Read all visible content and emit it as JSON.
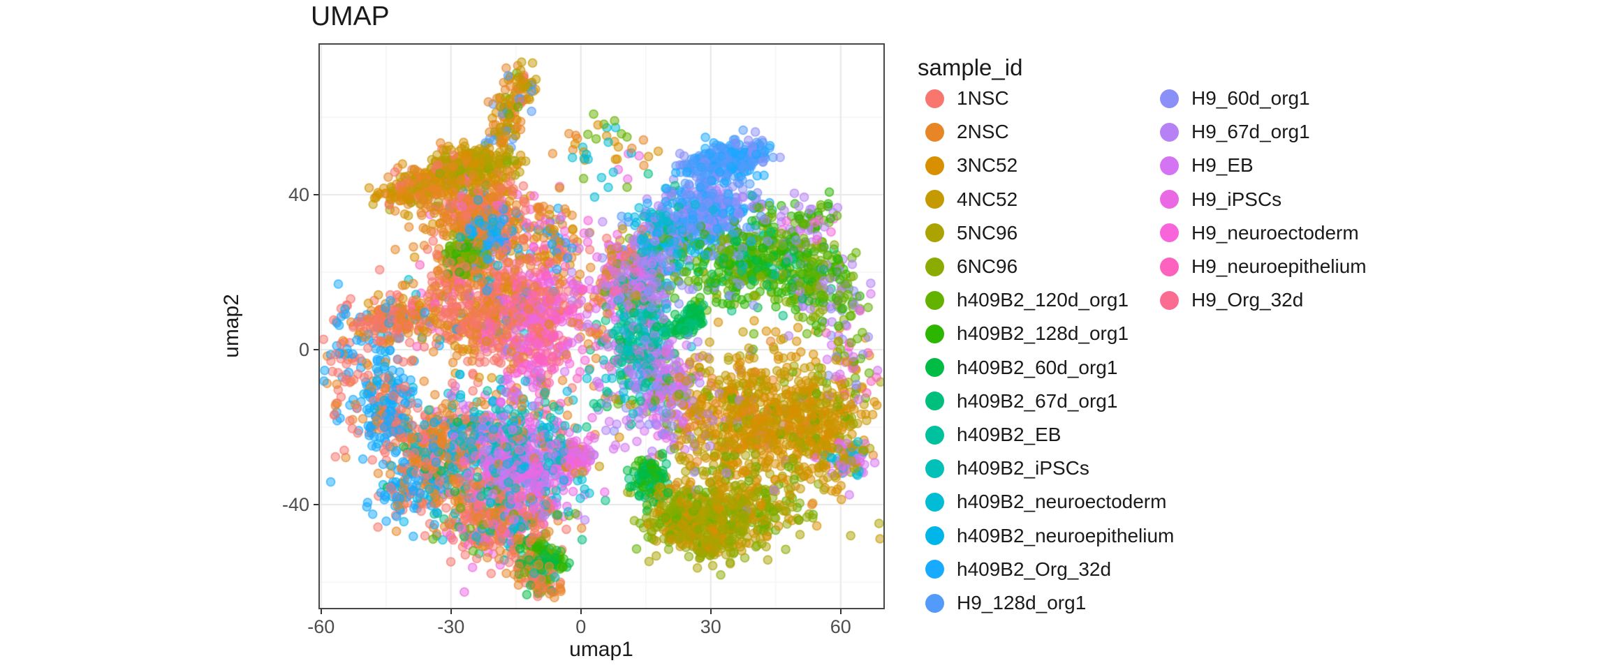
{
  "title": "UMAP",
  "style": {
    "background": "#FFFFFF",
    "panel_border": "#474747",
    "grid_major": "#E8E8E8",
    "grid_minor": "#F4F4F4",
    "tick_color": "#333333",
    "tick_text_color": "#4D4D4D",
    "text_color": "#1A1A1A"
  },
  "chart_data": {
    "type": "scatter",
    "title": "UMAP",
    "xlabel": "umap1",
    "ylabel": "umap2",
    "xlim": [
      -60.6,
      70.2
    ],
    "ylim": [
      -67.0,
      79.1
    ],
    "x_ticks": [
      -60,
      -30,
      0,
      30,
      60
    ],
    "y_ticks": [
      -40,
      0,
      40
    ],
    "x_minor_ticks": [
      -45,
      -15,
      15,
      45
    ],
    "y_minor_ticks": [
      -60,
      -20,
      20,
      60
    ],
    "grid": true,
    "legend_position": "right",
    "legend_title": "sample_id",
    "legend_columns": [
      16,
      7
    ],
    "point_style": {
      "radius_px": 6.0,
      "fill_alpha": 0.5,
      "stroke_alpha": 0.75,
      "stroke_width": 1.5
    },
    "series": [
      {
        "label": "1NSC",
        "color": "#F8766D"
      },
      {
        "label": "2NSC",
        "color": "#E88526"
      },
      {
        "label": "3NC52",
        "color": "#D89000"
      },
      {
        "label": "4NC52",
        "color": "#C49A00"
      },
      {
        "label": "5NC96",
        "color": "#ABA300"
      },
      {
        "label": "6NC96",
        "color": "#8CAB00"
      },
      {
        "label": "h409B2_120d_org1",
        "color": "#64B200"
      },
      {
        "label": "h409B2_128d_org1",
        "color": "#2CB600"
      },
      {
        "label": "h409B2_60d_org1",
        "color": "#00BB44"
      },
      {
        "label": "h409B2_67d_org1",
        "color": "#00BF7D"
      },
      {
        "label": "h409B2_EB",
        "color": "#00C19E"
      },
      {
        "label": "h409B2_iPSCs",
        "color": "#00C0B8"
      },
      {
        "label": "h409B2_neuroectoderm",
        "color": "#00BCD4"
      },
      {
        "label": "h409B2_neuroepithelium",
        "color": "#00B5EA"
      },
      {
        "label": "h409B2_Org_32d",
        "color": "#17AAFF"
      },
      {
        "label": "H9_128d_org1",
        "color": "#529BFB"
      },
      {
        "label": "H9_60d_org1",
        "color": "#8B8FF8"
      },
      {
        "label": "H9_67d_org1",
        "color": "#B581F5"
      },
      {
        "label": "H9_EB",
        "color": "#D574F2"
      },
      {
        "label": "H9_iPSCs",
        "color": "#EB68E5"
      },
      {
        "label": "H9_neuroectoderm",
        "color": "#F864D9"
      },
      {
        "label": "H9_neuroepithelium",
        "color": "#FC62BE"
      },
      {
        "label": "H9_Org_32d",
        "color": "#FB6C92"
      }
    ],
    "clusters": [
      {
        "n": 250,
        "x": -44,
        "y": 38,
        "x2": -27,
        "y2": 49,
        "sx": 3,
        "sy": 2.6,
        "mix": [
          [
            2,
            33
          ],
          [
            1,
            27
          ],
          [
            3,
            20
          ],
          [
            0,
            10
          ],
          [
            4,
            10
          ]
        ]
      },
      {
        "n": 210,
        "x": -30,
        "y": 45,
        "x2": -18,
        "y2": 49,
        "sx": 3.5,
        "sy": 2.6,
        "mix": [
          [
            3,
            34
          ],
          [
            4,
            30
          ],
          [
            2,
            21
          ],
          [
            5,
            15
          ]
        ]
      },
      {
        "n": 320,
        "x": -24,
        "y": 36,
        "sx": 6,
        "sy": 4.5,
        "mix": [
          [
            1,
            40
          ],
          [
            0,
            28
          ],
          [
            2,
            20
          ],
          [
            20,
            6
          ],
          [
            14,
            6
          ]
        ]
      },
      {
        "n": 130,
        "x": -19,
        "y": 53,
        "x2": -13,
        "y2": 71,
        "sx": 1.9,
        "sy": 2.2,
        "mix": [
          [
            1,
            28
          ],
          [
            2,
            24
          ],
          [
            3,
            20
          ],
          [
            15,
            10
          ],
          [
            6,
            12
          ],
          [
            0,
            6
          ]
        ]
      },
      {
        "n": 120,
        "x": -26,
        "y": 25,
        "sx": 2.6,
        "sy": 2.6,
        "mix": [
          [
            6,
            50
          ],
          [
            7,
            30
          ],
          [
            5,
            20
          ]
        ]
      },
      {
        "n": 120,
        "x": -22,
        "y": 30,
        "sx": 2.6,
        "sy": 3,
        "mix": [
          [
            14,
            62
          ],
          [
            13,
            20
          ],
          [
            15,
            18
          ]
        ]
      },
      {
        "n": 640,
        "x": -22,
        "y": 12,
        "sx": 8.5,
        "sy": 8.5,
        "mix": [
          [
            0,
            42
          ],
          [
            1,
            32
          ],
          [
            2,
            8
          ],
          [
            20,
            6
          ],
          [
            21,
            5
          ],
          [
            14,
            4
          ],
          [
            12,
            3
          ]
        ]
      },
      {
        "n": 330,
        "x": -9,
        "y": 6,
        "sx": 5,
        "sy": 9,
        "mix": [
          [
            20,
            28
          ],
          [
            21,
            24
          ],
          [
            19,
            15
          ],
          [
            0,
            13
          ],
          [
            1,
            11
          ],
          [
            18,
            9
          ]
        ]
      },
      {
        "n": 170,
        "x": -49,
        "y": 5,
        "x2": -38,
        "y2": 10,
        "sx": 3,
        "sy": 2.6,
        "mix": [
          [
            0,
            44
          ],
          [
            1,
            30
          ],
          [
            14,
            15
          ],
          [
            2,
            11
          ]
        ]
      },
      {
        "n": 200,
        "x": -45,
        "y": -14,
        "sx": 3.6,
        "sy": 6,
        "mix": [
          [
            14,
            54
          ],
          [
            0,
            25
          ],
          [
            1,
            11
          ],
          [
            13,
            10
          ]
        ]
      },
      {
        "n": 470,
        "x": -18,
        "y": -23,
        "sx": 8,
        "sy": 7,
        "mix": [
          [
            12,
            19
          ],
          [
            11,
            15
          ],
          [
            13,
            12
          ],
          [
            10,
            10
          ],
          [
            19,
            15
          ],
          [
            18,
            14
          ],
          [
            1,
            15
          ]
        ]
      },
      {
        "n": 300,
        "x": -14,
        "y": -32,
        "sx": 6,
        "sy": 5,
        "mix": [
          [
            19,
            29
          ],
          [
            18,
            25
          ],
          [
            20,
            15
          ],
          [
            17,
            10
          ],
          [
            12,
            11
          ],
          [
            11,
            10
          ]
        ]
      },
      {
        "n": 330,
        "x": -33,
        "y": -28,
        "sx": 6,
        "sy": 6,
        "mix": [
          [
            1,
            39
          ],
          [
            0,
            34
          ],
          [
            14,
            11
          ],
          [
            12,
            9
          ],
          [
            8,
            7
          ]
        ]
      },
      {
        "n": 380,
        "x": -19,
        "y": -45,
        "sx": 7,
        "sy": 5,
        "mix": [
          [
            1,
            30
          ],
          [
            0,
            24
          ],
          [
            12,
            12
          ],
          [
            19,
            10
          ],
          [
            20,
            9
          ],
          [
            6,
            8
          ],
          [
            9,
            7
          ]
        ]
      },
      {
        "n": 120,
        "x": -14,
        "y": -54,
        "x2": -7,
        "y2": -62,
        "sx": 2,
        "sy": 2,
        "mix": [
          [
            1,
            34
          ],
          [
            0,
            24
          ],
          [
            8,
            16
          ],
          [
            6,
            15
          ],
          [
            11,
            11
          ]
        ]
      },
      {
        "n": 90,
        "x": -40,
        "y": -36,
        "sx": 4,
        "sy": 5,
        "mix": [
          [
            14,
            58
          ],
          [
            13,
            20
          ],
          [
            0,
            22
          ]
        ]
      },
      {
        "n": 60,
        "x": -54,
        "y": -3,
        "sx": 2.6,
        "sy": 8,
        "mix": [
          [
            14,
            38
          ],
          [
            0,
            32
          ],
          [
            1,
            30
          ]
        ]
      },
      {
        "n": 70,
        "x": -12,
        "y": -50,
        "x2": -5,
        "y2": -55,
        "sx": 1.6,
        "sy": 1.6,
        "mix": [
          [
            7,
            40
          ],
          [
            8,
            30
          ],
          [
            6,
            30
          ]
        ]
      },
      {
        "n": 90,
        "x": -2,
        "y": -28,
        "sx": 2.2,
        "sy": 2.6,
        "mix": [
          [
            19,
            38
          ],
          [
            20,
            28
          ],
          [
            3,
            16
          ],
          [
            18,
            18
          ]
        ]
      },
      {
        "n": 90,
        "x": -7,
        "y": 30,
        "sx": 4,
        "sy": 6,
        "mix": [
          [
            1,
            30
          ],
          [
            20,
            20
          ],
          [
            14,
            20
          ],
          [
            2,
            30
          ]
        ]
      },
      {
        "n": 60,
        "x": 0,
        "y": 16,
        "sx": 4,
        "sy": 10,
        "mix": [
          [
            20,
            28
          ],
          [
            18,
            22
          ],
          [
            17,
            20
          ],
          [
            1,
            30
          ]
        ]
      },
      {
        "n": 45,
        "x": 6,
        "y": 52,
        "sx": 6,
        "sy": 5,
        "mix": [
          [
            2,
            25
          ],
          [
            1,
            25
          ],
          [
            12,
            15
          ],
          [
            6,
            20
          ],
          [
            19,
            15
          ]
        ]
      },
      {
        "n": 25,
        "x": -56,
        "y": -6,
        "sx": 2,
        "sy": 13,
        "mix": [
          [
            0,
            50
          ],
          [
            1,
            28
          ],
          [
            14,
            22
          ]
        ]
      },
      {
        "n": 250,
        "x": 27,
        "y": 47,
        "x2": 41,
        "y2": 51,
        "sx": 2.8,
        "sy": 2.3,
        "mix": [
          [
            15,
            58
          ],
          [
            14,
            26
          ],
          [
            16,
            16
          ]
        ]
      },
      {
        "n": 300,
        "x": 30,
        "y": 36,
        "sx": 6,
        "sy": 4.2,
        "mix": [
          [
            15,
            34
          ],
          [
            16,
            29
          ],
          [
            14,
            20
          ],
          [
            17,
            17
          ]
        ]
      },
      {
        "n": 220,
        "x": 20,
        "y": 29,
        "sx": 4.2,
        "sy": 5.2,
        "mix": [
          [
            13,
            27
          ],
          [
            12,
            22
          ],
          [
            15,
            19
          ],
          [
            9,
            15
          ],
          [
            17,
            17
          ]
        ]
      },
      {
        "n": 430,
        "x": 38,
        "y": 22,
        "sx": 9,
        "sy": 5.2,
        "mix": [
          [
            6,
            29
          ],
          [
            7,
            25
          ],
          [
            8,
            15
          ],
          [
            9,
            10
          ],
          [
            5,
            11
          ],
          [
            16,
            10
          ]
        ]
      },
      {
        "n": 160,
        "x": 55,
        "y": 17,
        "sx": 4,
        "sy": 5.2,
        "mix": [
          [
            6,
            30
          ],
          [
            7,
            28
          ],
          [
            5,
            20
          ],
          [
            17,
            22
          ]
        ]
      },
      {
        "n": 260,
        "x": 14,
        "y": 4,
        "sx": 4,
        "sy": 9,
        "mix": [
          [
            9,
            24
          ],
          [
            10,
            20
          ],
          [
            8,
            14
          ],
          [
            12,
            16
          ],
          [
            11,
            15
          ],
          [
            18,
            11
          ]
        ]
      },
      {
        "n": 80,
        "x": 22,
        "y": 4,
        "x2": 27,
        "y2": 10,
        "sx": 1.4,
        "sy": 1.4,
        "mix": [
          [
            8,
            60
          ],
          [
            9,
            40
          ]
        ]
      },
      {
        "n": 260,
        "x": 19,
        "y": -10,
        "sx": 5,
        "sy": 7,
        "mix": [
          [
            17,
            30
          ],
          [
            18,
            24
          ],
          [
            16,
            15
          ],
          [
            6,
            16
          ],
          [
            19,
            15
          ]
        ]
      },
      {
        "n": 150,
        "x": 14,
        "y": 18,
        "sx": 3.6,
        "sy": 6,
        "mix": [
          [
            17,
            44
          ],
          [
            16,
            24
          ],
          [
            18,
            20
          ],
          [
            6,
            12
          ]
        ]
      },
      {
        "n": 640,
        "x": 38,
        "y": -18,
        "sx": 9,
        "sy": 9,
        "mix": [
          [
            2,
            45
          ],
          [
            3,
            25
          ],
          [
            1,
            9
          ],
          [
            4,
            10
          ],
          [
            6,
            6
          ],
          [
            17,
            5
          ]
        ]
      },
      {
        "n": 300,
        "x": 55,
        "y": -20,
        "sx": 5,
        "sy": 8,
        "mix": [
          [
            2,
            40
          ],
          [
            3,
            30
          ],
          [
            4,
            20
          ],
          [
            5,
            10
          ]
        ]
      },
      {
        "n": 430,
        "x": 34,
        "y": -42,
        "sx": 8,
        "sy": 5,
        "mix": [
          [
            4,
            25
          ],
          [
            5,
            25
          ],
          [
            3,
            18
          ],
          [
            2,
            18
          ],
          [
            6,
            14
          ]
        ]
      },
      {
        "n": 110,
        "x": 16,
        "y": -33,
        "sx": 2.2,
        "sy": 3,
        "mix": [
          [
            8,
            54
          ],
          [
            9,
            30
          ],
          [
            7,
            16
          ]
        ]
      },
      {
        "n": 170,
        "x": 23,
        "y": -44,
        "sx": 4,
        "sy": 3.6,
        "mix": [
          [
            5,
            35
          ],
          [
            4,
            25
          ],
          [
            2,
            20
          ],
          [
            6,
            20
          ]
        ]
      },
      {
        "n": 80,
        "x": 62,
        "y": 0,
        "sx": 3,
        "sy": 8,
        "mix": [
          [
            6,
            25
          ],
          [
            18,
            20
          ],
          [
            21,
            20
          ],
          [
            2,
            20
          ],
          [
            16,
            15
          ]
        ]
      },
      {
        "n": 70,
        "x": 62,
        "y": -28,
        "sx": 2.6,
        "sy": 2.6,
        "mix": [
          [
            18,
            30
          ],
          [
            12,
            25
          ],
          [
            4,
            25
          ],
          [
            19,
            20
          ]
        ]
      },
      {
        "n": 90,
        "x": 50,
        "y": 32,
        "sx": 5,
        "sy": 4,
        "mix": [
          [
            6,
            30
          ],
          [
            20,
            20
          ],
          [
            17,
            25
          ],
          [
            7,
            25
          ]
        ]
      },
      {
        "n": 110,
        "x": 10,
        "y": 20,
        "sx": 3,
        "sy": 5,
        "mix": [
          [
            0,
            30
          ],
          [
            20,
            25
          ],
          [
            3,
            20
          ],
          [
            19,
            25
          ]
        ]
      },
      {
        "n": 80,
        "x": 30,
        "y": -50,
        "sx": 3,
        "sy": 2.2,
        "mix": [
          [
            4,
            40
          ],
          [
            5,
            30
          ],
          [
            2,
            30
          ]
        ]
      },
      {
        "n": 50,
        "x": 5,
        "y": -6,
        "sx": 3,
        "sy": 12,
        "mix": [
          [
            18,
            20
          ],
          [
            12,
            20
          ],
          [
            1,
            20
          ],
          [
            9,
            20
          ],
          [
            17,
            20
          ]
        ]
      }
    ]
  }
}
